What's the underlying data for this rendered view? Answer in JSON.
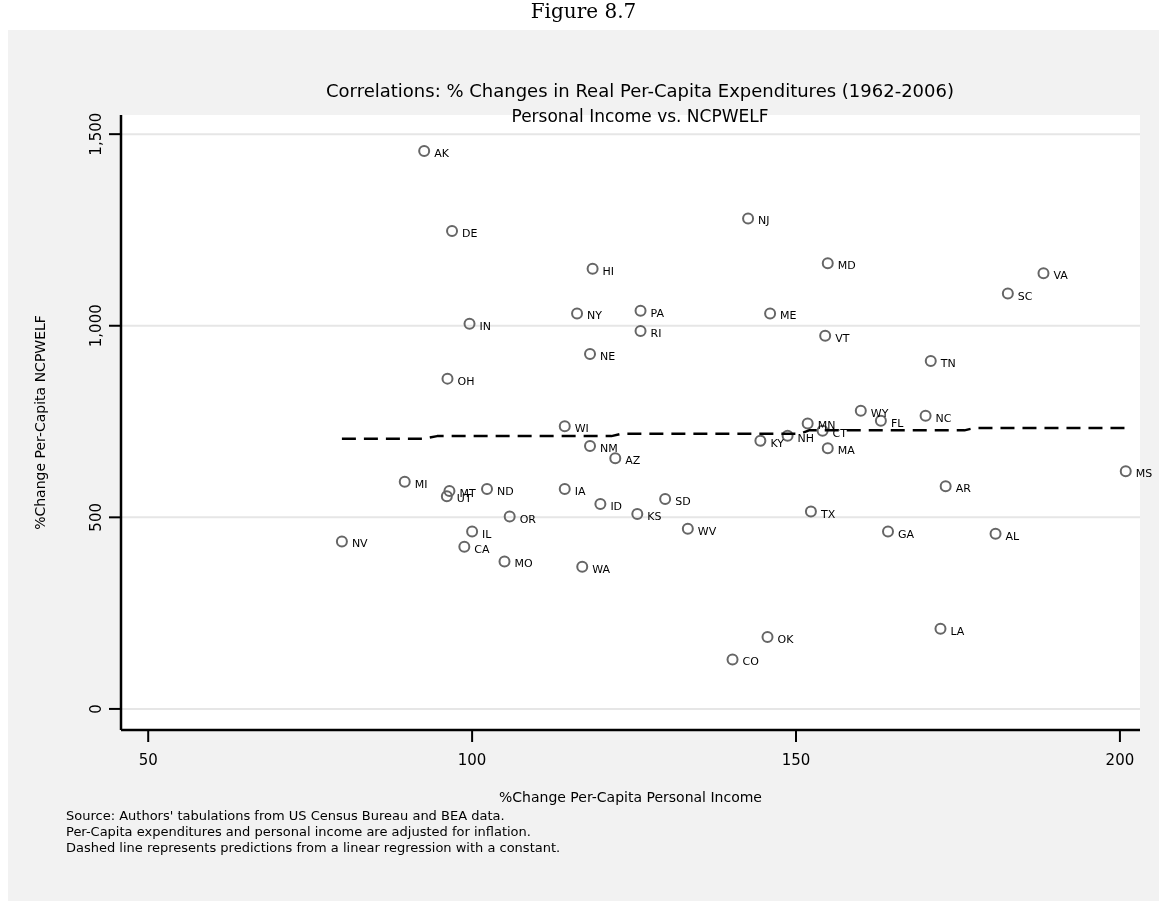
{
  "chart_data": {
    "type": "scatter",
    "title": "Correlations: % Changes in Real Per-Capita Expenditures (1962-2006)",
    "subtitle": "Personal Income vs. NCPWELF",
    "xlabel": "%Change Per-Capita Personal Income",
    "ylabel": "%Change Per-Capita NCPWELF",
    "xlim": [
      45.8,
      203.1
    ],
    "xticks": [
      50,
      100,
      150,
      200
    ],
    "ylim": [
      -55,
      1550
    ],
    "yticks": [
      0,
      500,
      {
        "value": 1000,
        "label": "1,000"
      },
      {
        "value": 1500,
        "label": "1,500"
      }
    ],
    "grid": "y",
    "series": [
      {
        "type": "scatter",
        "color": "#666666",
        "marker": "circle",
        "x": [
          92.6,
          96.9,
          118.6,
          116.2,
          99.6,
          118.2,
          96.2,
          114.3,
          118.2,
          142.6,
          154.9,
          188.2,
          182.7,
          126.0,
          146.0,
          126.0,
          154.5,
          170.8,
          160.0,
          170.0,
          163.1,
          151.8,
          154.1,
          148.7,
          144.5,
          154.9,
          122.1,
          89.6,
          96.5,
          96.1,
          102.3,
          114.3,
          119.8,
          105.8,
          100.0,
          98.8,
          105.0,
          117.0,
          79.9,
          200.9,
          173.1,
          129.8,
          125.5,
          152.3,
          133.3,
          164.2,
          180.8,
          172.3,
          145.6,
          140.2
        ],
        "values": [
          1456,
          1247,
          1149,
          1032,
          1005,
          926,
          862,
          738,
          686,
          1280,
          1163,
          1137,
          1084,
          1039,
          1032,
          986,
          974,
          908,
          778,
          765,
          752,
          745,
          726,
          713,
          700,
          680,
          654,
          593,
          569,
          555,
          574,
          574,
          535,
          502,
          463,
          423,
          385,
          371,
          437,
          620,
          581,
          548,
          509,
          515,
          470,
          463,
          457,
          209,
          188,
          129
        ]
      },
      {
        "type": "line",
        "color": "#000000",
        "line_style": "dashed",
        "x": [
          79.9,
          92.5,
          94.6,
          121.5,
          123,
          150.6,
          152,
          176,
          177.5,
          200.8
        ],
        "values": [
          705,
          705,
          712,
          712,
          718,
          718,
          727,
          727,
          733,
          733
        ]
      }
    ],
    "annotations": [
      "Figure 8.7",
      "Source: Authors' tabulations from US Census Bureau and BEA data.",
      "Per-Capita expenditures and personal income are adjusted for inflation.",
      "Dashed line represents predictions from a linear regression with a constant.",
      {
        "text": "AK",
        "x": 92.6,
        "y": 1456
      },
      {
        "text": "DE",
        "x": 96.9,
        "y": 1247
      },
      {
        "text": "HI",
        "x": 118.6,
        "y": 1149
      },
      {
        "text": "NY",
        "x": 116.2,
        "y": 1032
      },
      {
        "text": "IN",
        "x": 99.6,
        "y": 1005
      },
      {
        "text": "NE",
        "x": 118.2,
        "y": 926
      },
      {
        "text": "OH",
        "x": 96.2,
        "y": 862
      },
      {
        "text": "WI",
        "x": 114.3,
        "y": 738
      },
      {
        "text": "NM",
        "x": 118.2,
        "y": 686
      },
      {
        "text": "NJ",
        "x": 142.6,
        "y": 1280
      },
      {
        "text": "MD",
        "x": 154.9,
        "y": 1163
      },
      {
        "text": "VA",
        "x": 188.2,
        "y": 1137
      },
      {
        "text": "SC",
        "x": 182.7,
        "y": 1084
      },
      {
        "text": "PA",
        "x": 126.0,
        "y": 1039
      },
      {
        "text": "ME",
        "x": 146.0,
        "y": 1032
      },
      {
        "text": "RI",
        "x": 126.0,
        "y": 986
      },
      {
        "text": "VT",
        "x": 154.5,
        "y": 974
      },
      {
        "text": "TN",
        "x": 170.8,
        "y": 908
      },
      {
        "text": "WY",
        "x": 160.0,
        "y": 778
      },
      {
        "text": "NC",
        "x": 170.0,
        "y": 765
      },
      {
        "text": "FL",
        "x": 163.1,
        "y": 752
      },
      {
        "text": "MN",
        "x": 151.8,
        "y": 745
      },
      {
        "text": "CT",
        "x": 154.1,
        "y": 726
      },
      {
        "text": "NH",
        "x": 148.7,
        "y": 713
      },
      {
        "text": "KY",
        "x": 144.5,
        "y": 700
      },
      {
        "text": "MA",
        "x": 154.9,
        "y": 680
      },
      {
        "text": "AZ",
        "x": 122.1,
        "y": 654
      },
      {
        "text": "MI",
        "x": 89.6,
        "y": 593
      },
      {
        "text": "MT",
        "x": 96.5,
        "y": 569
      },
      {
        "text": "UT",
        "x": 96.1,
        "y": 555
      },
      {
        "text": "ND",
        "x": 102.3,
        "y": 574
      },
      {
        "text": "IA",
        "x": 114.3,
        "y": 574
      },
      {
        "text": "ID",
        "x": 119.8,
        "y": 535
      },
      {
        "text": "OR",
        "x": 105.8,
        "y": 502
      },
      {
        "text": "IL",
        "x": 100.0,
        "y": 463
      },
      {
        "text": "CA",
        "x": 98.8,
        "y": 423
      },
      {
        "text": "MO",
        "x": 105.0,
        "y": 385
      },
      {
        "text": "WA",
        "x": 117.0,
        "y": 371
      },
      {
        "text": "NV",
        "x": 79.9,
        "y": 437
      },
      {
        "text": "MS",
        "x": 200.9,
        "y": 620
      },
      {
        "text": "AR",
        "x": 173.1,
        "y": 581
      },
      {
        "text": "SD",
        "x": 129.8,
        "y": 548
      },
      {
        "text": "KS",
        "x": 125.5,
        "y": 509
      },
      {
        "text": "TX",
        "x": 152.3,
        "y": 515
      },
      {
        "text": "WV",
        "x": 133.3,
        "y": 470
      },
      {
        "text": "GA",
        "x": 164.2,
        "y": 463
      },
      {
        "text": "AL",
        "x": 180.8,
        "y": 457
      },
      {
        "text": "LA",
        "x": 172.3,
        "y": 209
      },
      {
        "text": "OK",
        "x": 145.6,
        "y": 188
      },
      {
        "text": "CO",
        "x": 140.2,
        "y": 129
      }
    ]
  }
}
